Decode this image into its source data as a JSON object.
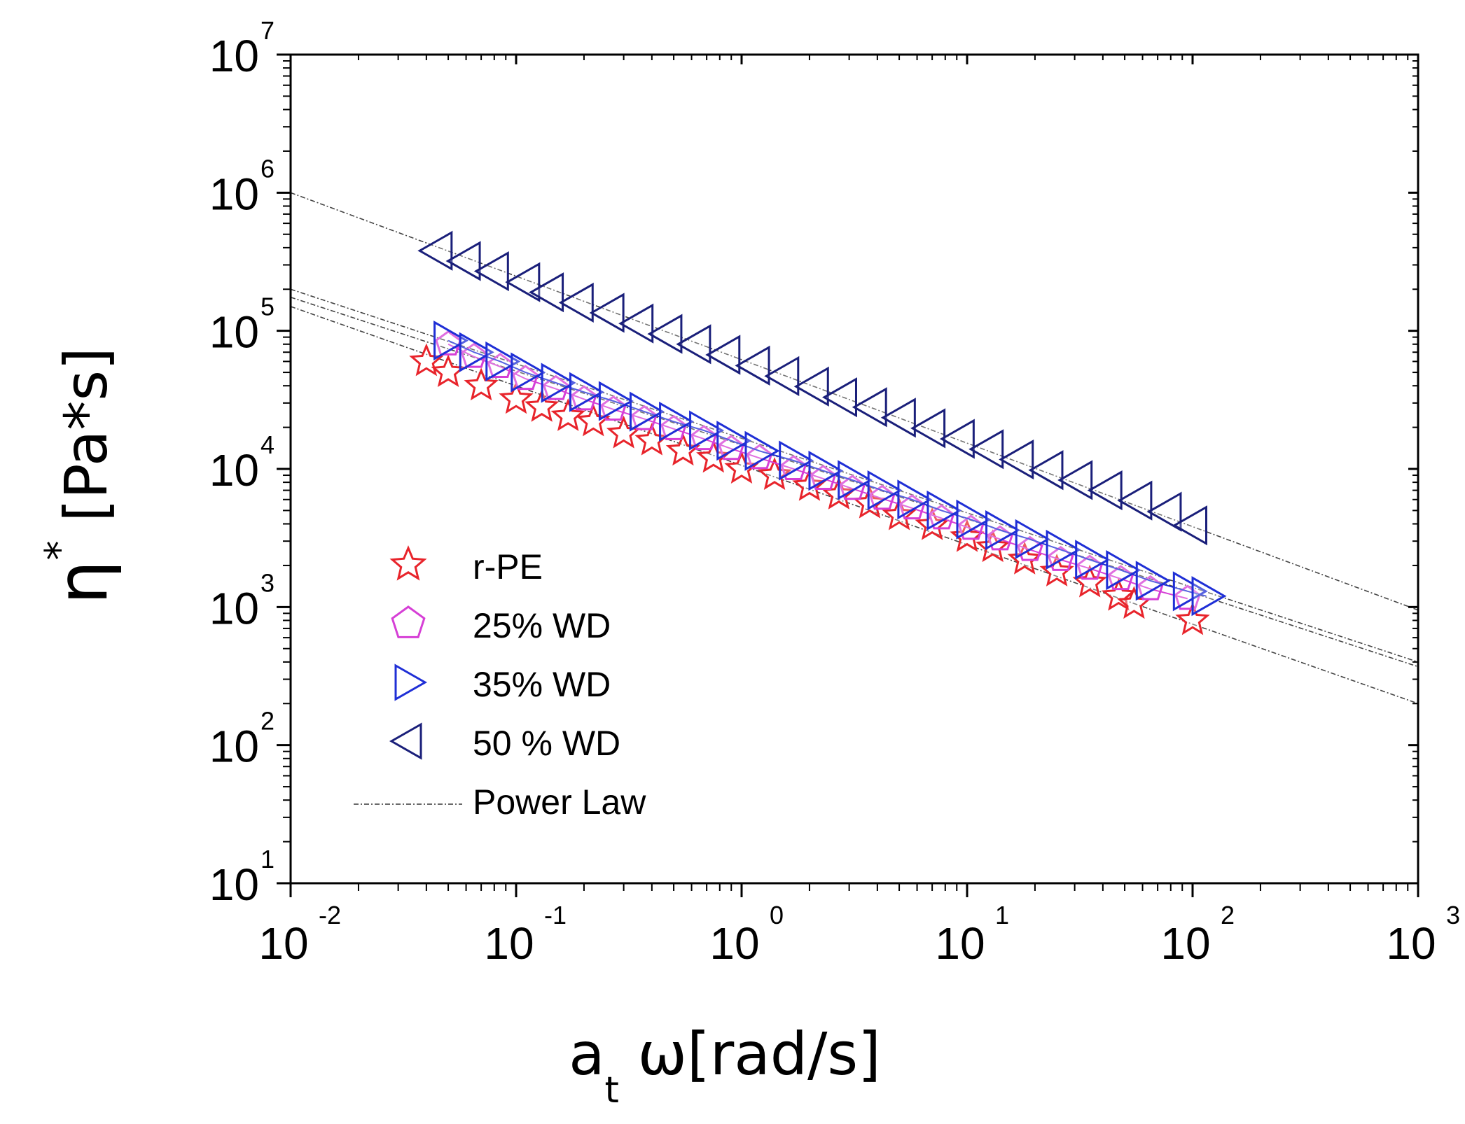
{
  "chart_data": {
    "type": "scatter",
    "xscale": "log",
    "yscale": "log",
    "xlim": [
      0.01,
      1000
    ],
    "ylim": [
      10,
      10000000
    ],
    "xlabel": {
      "main": "a",
      "sub": "t",
      "rest": " ω[rad/s]"
    },
    "ylabel": {
      "symbol": "η",
      "sup": "*",
      "rest": " [Pa*s]"
    },
    "x_ticks": [
      {
        "base": "10",
        "exp": "-2"
      },
      {
        "base": "10",
        "exp": "-1"
      },
      {
        "base": "10",
        "exp": "0"
      },
      {
        "base": "10",
        "exp": "1"
      },
      {
        "base": "10",
        "exp": "2"
      },
      {
        "base": "10",
        "exp": "3"
      }
    ],
    "y_ticks": [
      {
        "base": "10",
        "exp": "1"
      },
      {
        "base": "10",
        "exp": "2"
      },
      {
        "base": "10",
        "exp": "3"
      },
      {
        "base": "10",
        "exp": "4"
      },
      {
        "base": "10",
        "exp": "5"
      },
      {
        "base": "10",
        "exp": "6"
      },
      {
        "base": "10",
        "exp": "7"
      }
    ],
    "series": [
      {
        "name": "r-PE",
        "marker": "star",
        "color": "#e8242b",
        "x": [
          0.04,
          0.05,
          0.07,
          0.1,
          0.13,
          0.17,
          0.22,
          0.3,
          0.4,
          0.55,
          0.75,
          1.0,
          1.4,
          2.0,
          2.7,
          3.7,
          5.0,
          7.0,
          10.0,
          13.0,
          18.0,
          25.0,
          35.0,
          47.0,
          55.0,
          100.0
        ],
        "y": [
          60000,
          50000,
          40000,
          32000,
          28000,
          24000,
          22000,
          18000,
          16000,
          13500,
          12000,
          10000,
          9000,
          7500,
          6500,
          5600,
          4600,
          3900,
          3200,
          2700,
          2200,
          1800,
          1500,
          1200,
          1050,
          800
        ]
      },
      {
        "name": "25% WD",
        "marker": "pentagon",
        "color": "#d63fd6",
        "x": [
          0.05,
          0.065,
          0.085,
          0.11,
          0.15,
          0.2,
          0.27,
          0.37,
          0.5,
          0.68,
          0.9,
          1.2,
          1.7,
          2.3,
          3.1,
          4.2,
          5.7,
          7.7,
          10.4,
          14.0,
          19.0,
          26.0,
          35.0,
          48.0,
          65.0,
          95.0
        ],
        "y": [
          80000,
          65000,
          55000,
          45000,
          38000,
          32000,
          27000,
          23000,
          19500,
          16500,
          14000,
          12000,
          10000,
          8500,
          7200,
          6100,
          5200,
          4400,
          3700,
          3100,
          2600,
          2200,
          1900,
          1600,
          1350,
          1150
        ]
      },
      {
        "name": "35% WD",
        "marker": "triangle-right",
        "color": "#1f2fd6",
        "x": [
          0.05,
          0.065,
          0.085,
          0.11,
          0.15,
          0.2,
          0.27,
          0.37,
          0.5,
          0.68,
          0.9,
          1.2,
          1.7,
          2.3,
          3.1,
          4.2,
          5.7,
          7.7,
          10.4,
          14.0,
          19.0,
          26.0,
          35.0,
          48.0,
          65.0,
          95.0,
          115.0
        ],
        "y": [
          85000,
          70000,
          60000,
          50000,
          42000,
          36000,
          31000,
          26000,
          22000,
          19000,
          16000,
          13500,
          11500,
          9700,
          8300,
          7000,
          6000,
          5000,
          4300,
          3600,
          3100,
          2600,
          2200,
          1850,
          1550,
          1300,
          1200
        ]
      },
      {
        "name": "50 % WD",
        "marker": "triangle-left",
        "color": "#1a1f7a",
        "x": [
          0.045,
          0.06,
          0.08,
          0.11,
          0.14,
          0.19,
          0.26,
          0.35,
          0.47,
          0.63,
          0.85,
          1.15,
          1.55,
          2.1,
          2.8,
          3.8,
          5.1,
          6.9,
          9.3,
          12.5,
          17.0,
          23.0,
          31.0,
          42.0,
          57.0,
          77.0,
          100.0
        ],
        "y": [
          380000,
          320000,
          270000,
          225000,
          190000,
          160000,
          135000,
          113000,
          95000,
          80000,
          67000,
          56000,
          47000,
          39500,
          33000,
          28000,
          23500,
          19700,
          16500,
          13900,
          11700,
          9800,
          8300,
          7000,
          5900,
          4900,
          3900
        ]
      }
    ],
    "fits": [
      {
        "name": "Power Law (50 % WD)",
        "x": [
          0.01,
          1000
        ],
        "y": [
          1000000,
          950
        ]
      },
      {
        "name": "Power Law (35% WD)",
        "x": [
          0.01,
          1000
        ],
        "y": [
          200000,
          400
        ]
      },
      {
        "name": "Power Law (25% WD)",
        "x": [
          0.01,
          1000
        ],
        "y": [
          175000,
          370
        ]
      },
      {
        "name": "Power Law (r-PE)",
        "x": [
          0.01,
          1000
        ],
        "y": [
          150000,
          200
        ]
      }
    ],
    "legend": {
      "position": "center-left",
      "entries": [
        {
          "label": "r-PE",
          "marker": "star",
          "color": "#e8242b"
        },
        {
          "label": "25% WD",
          "marker": "pentagon",
          "color": "#d63fd6"
        },
        {
          "label": "35% WD",
          "marker": "triangle-right",
          "color": "#1f2fd6"
        },
        {
          "label": "50 % WD",
          "marker": "triangle-left",
          "color": "#1a1f7a"
        },
        {
          "label": "Power Law",
          "marker": "dashed-line",
          "color": "#555555"
        }
      ]
    }
  }
}
